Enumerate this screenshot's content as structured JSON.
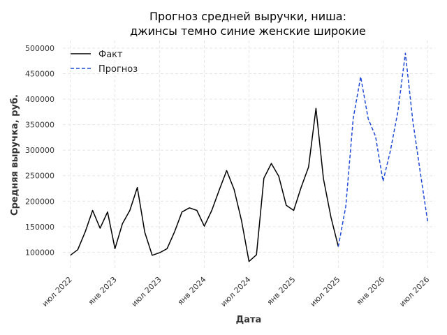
{
  "chart_data": {
    "type": "line",
    "title": [
      "Прогноз средней выручки, ниша:",
      "джинсы темно синие женские широкие"
    ],
    "xlabel": "Дата",
    "ylabel": "Средняя выручка, руб.",
    "ylim": [
      65000,
      515000
    ],
    "xlim": [
      "2022-06",
      "2026-08"
    ],
    "yticks": [
      100000,
      150000,
      200000,
      250000,
      300000,
      350000,
      400000,
      450000,
      500000
    ],
    "xticks": [
      {
        "date": "2022-07",
        "label": "июл 2022"
      },
      {
        "date": "2023-01",
        "label": "янв 2023"
      },
      {
        "date": "2023-07",
        "label": "июл 2023"
      },
      {
        "date": "2024-01",
        "label": "янв 2024"
      },
      {
        "date": "2024-07",
        "label": "июл 2024"
      },
      {
        "date": "2025-01",
        "label": "янв 2025"
      },
      {
        "date": "2025-07",
        "label": "июл 2025"
      },
      {
        "date": "2026-01",
        "label": "янв 2026"
      },
      {
        "date": "2026-07",
        "label": "июл 2026"
      }
    ],
    "grid": true,
    "legend_position": "top-left",
    "series": [
      {
        "name": "Факт",
        "color": "#000000",
        "style": "solid",
        "points": [
          [
            "2022-07",
            94000
          ],
          [
            "2022-08",
            105000
          ],
          [
            "2022-09",
            140000
          ],
          [
            "2022-10",
            182000
          ],
          [
            "2022-11",
            147000
          ],
          [
            "2022-12",
            179000
          ],
          [
            "2023-01",
            107000
          ],
          [
            "2023-02",
            156000
          ],
          [
            "2023-03",
            182000
          ],
          [
            "2023-04",
            227000
          ],
          [
            "2023-05",
            139000
          ],
          [
            "2023-06",
            94000
          ],
          [
            "2023-07",
            99000
          ],
          [
            "2023-08",
            107000
          ],
          [
            "2023-09",
            140000
          ],
          [
            "2023-10",
            179000
          ],
          [
            "2023-11",
            187000
          ],
          [
            "2023-12",
            182000
          ],
          [
            "2024-01",
            151000
          ],
          [
            "2024-02",
            182000
          ],
          [
            "2024-03",
            222000
          ],
          [
            "2024-04",
            260000
          ],
          [
            "2024-05",
            223000
          ],
          [
            "2024-06",
            162000
          ],
          [
            "2024-07",
            82000
          ],
          [
            "2024-08",
            95000
          ],
          [
            "2024-09",
            245000
          ],
          [
            "2024-10",
            274000
          ],
          [
            "2024-11",
            249000
          ],
          [
            "2024-12",
            192000
          ],
          [
            "2025-01",
            182000
          ],
          [
            "2025-02",
            227000
          ],
          [
            "2025-03",
            267000
          ],
          [
            "2025-04",
            382000
          ],
          [
            "2025-05",
            244000
          ],
          [
            "2025-06",
            169000
          ],
          [
            "2025-07",
            111000
          ]
        ]
      },
      {
        "name": "Прогноз",
        "color": "#1f49d6",
        "style": "dashed",
        "points": [
          [
            "2025-07",
            111000
          ],
          [
            "2025-08",
            190000
          ],
          [
            "2025-09",
            362000
          ],
          [
            "2025-10",
            444000
          ],
          [
            "2025-11",
            362000
          ],
          [
            "2025-12",
            327000
          ],
          [
            "2026-01",
            239000
          ],
          [
            "2026-02",
            299000
          ],
          [
            "2026-03",
            376000
          ],
          [
            "2026-04",
            490000
          ],
          [
            "2026-05",
            358000
          ],
          [
            "2026-06",
            257000
          ],
          [
            "2026-07",
            160000
          ]
        ]
      }
    ]
  }
}
